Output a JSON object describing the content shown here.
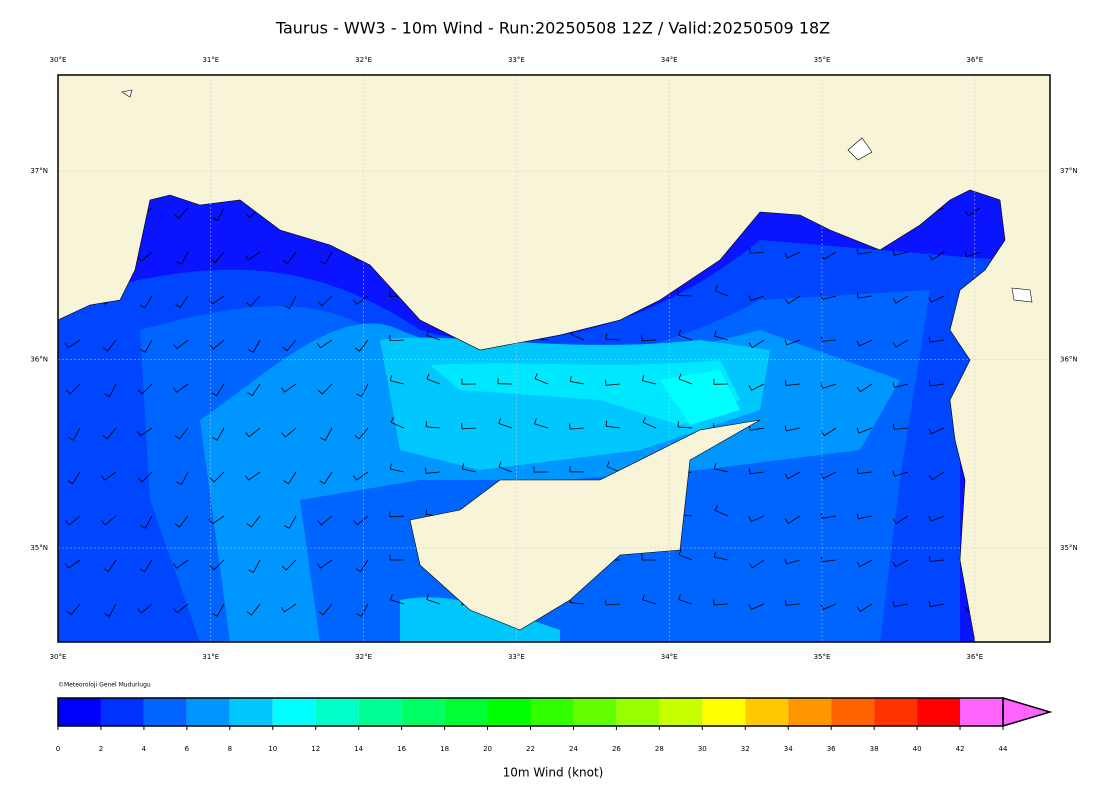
{
  "header": {
    "title": "Taurus - WW3 - 10m Wind - Run:20250508 12Z / Valid:20250509 18Z"
  },
  "map": {
    "lon_labels": [
      "30°E",
      "31°E",
      "32°E",
      "33°E",
      "34°E",
      "35°E",
      "36°E"
    ],
    "lat_labels": [
      "37°N",
      "36°N",
      "35°N"
    ],
    "credit": "©Meteoroloji Genel Mudurlugu"
  },
  "colorbar": {
    "label": "10m Wind (knot)",
    "ticks": [
      0,
      2,
      4,
      6,
      8,
      10,
      12,
      14,
      16,
      18,
      20,
      22,
      24,
      26,
      28,
      30,
      32,
      34,
      36,
      38,
      40,
      42,
      44
    ],
    "colors": [
      "#0000ff",
      "#0032ff",
      "#0064ff",
      "#0096ff",
      "#00c8ff",
      "#00ffff",
      "#00ffc8",
      "#00ff96",
      "#00ff64",
      "#00ff32",
      "#00ff00",
      "#32ff00",
      "#64ff00",
      "#96ff00",
      "#c8ff00",
      "#ffff00",
      "#ffc800",
      "#ff9600",
      "#ff6400",
      "#ff3200",
      "#ff0000",
      "#ff64ff"
    ]
  }
}
